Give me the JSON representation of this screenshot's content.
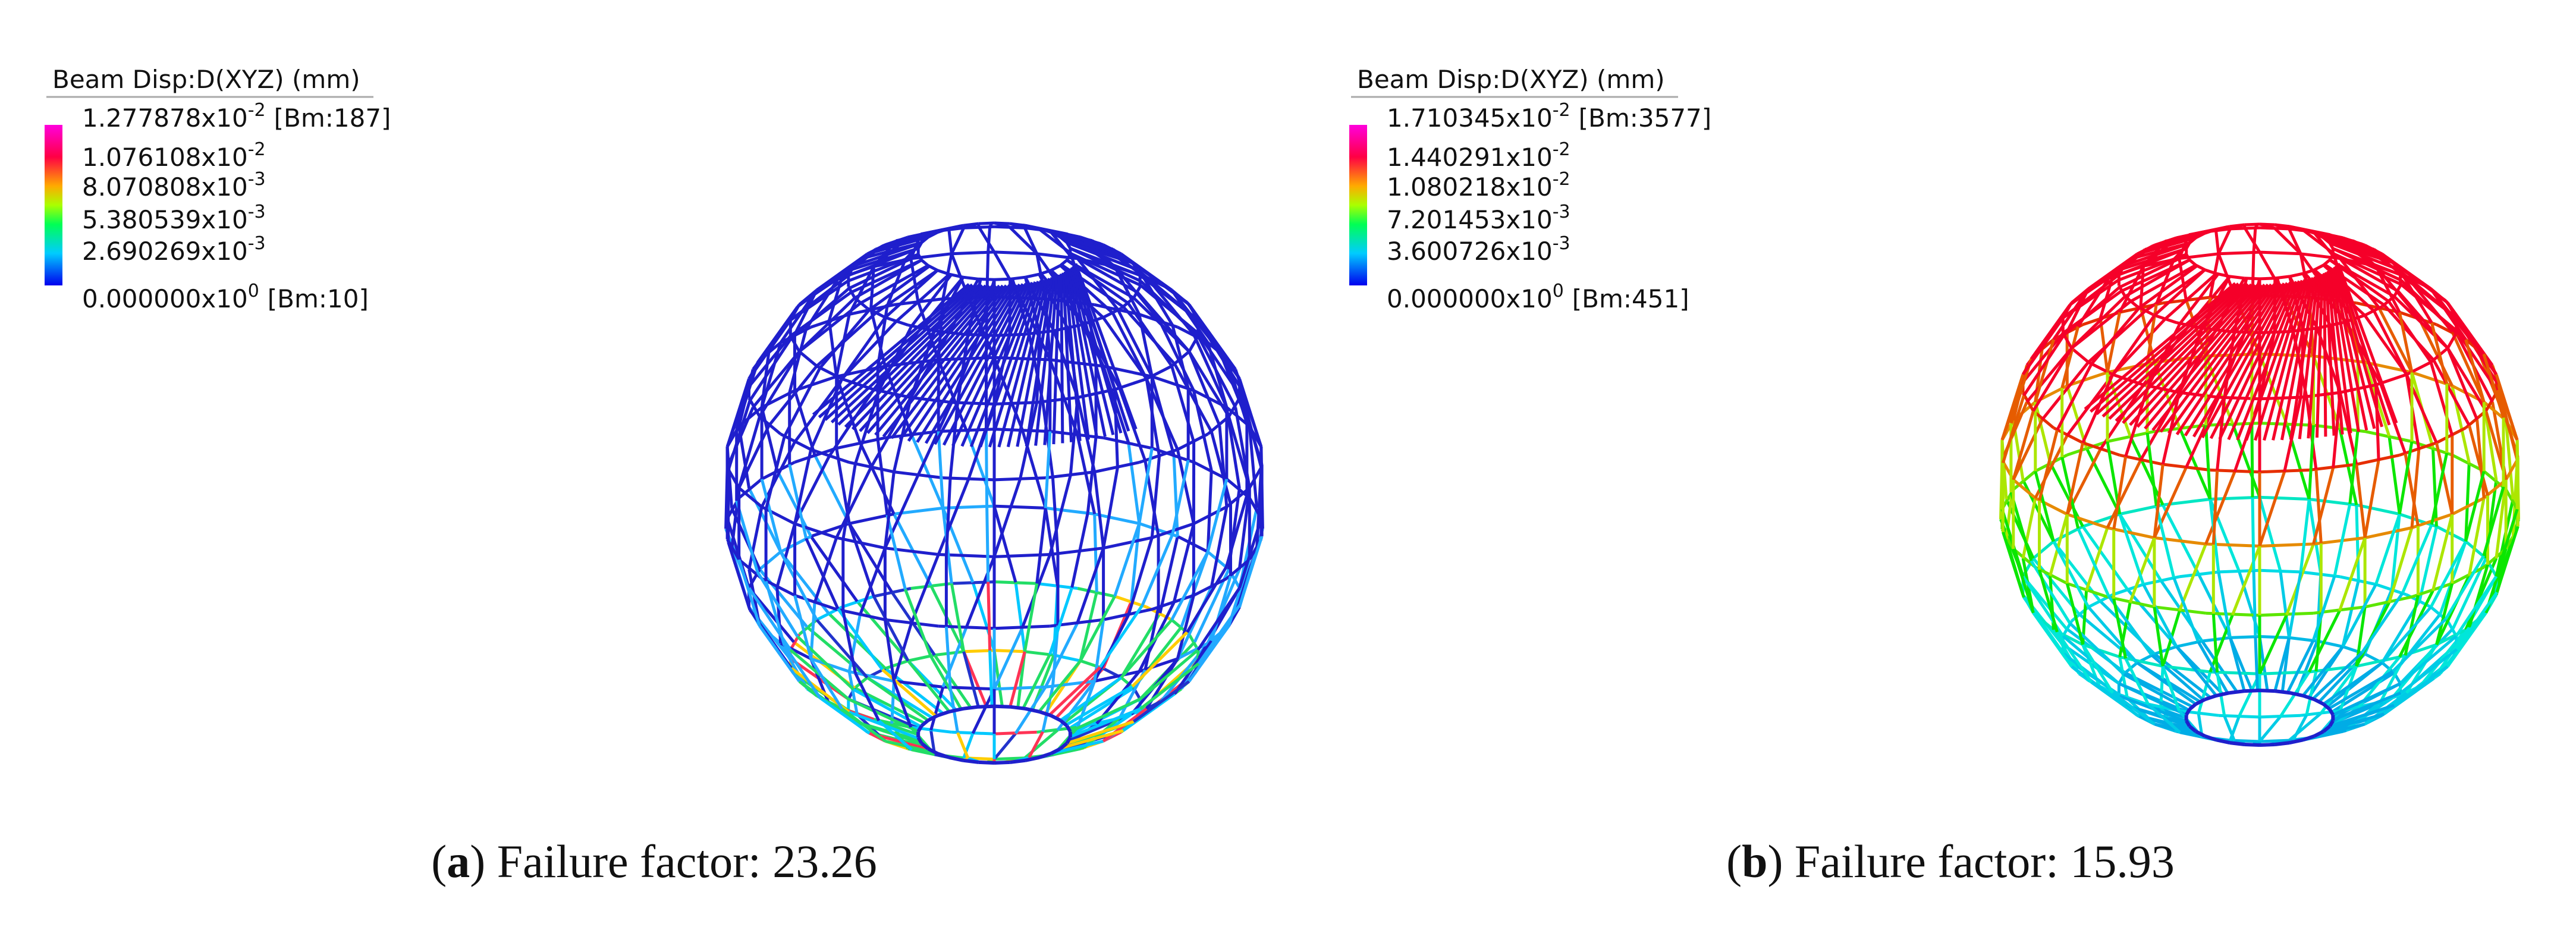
{
  "panels": [
    {
      "legend": {
        "title": "Beam Disp:D(XYZ)  (mm)",
        "entries": [
          {
            "mantissa": "1.277878x10",
            "exponent": "-2",
            "note": "[Bm:187]"
          },
          {
            "mantissa": "1.076108x10",
            "exponent": "-2"
          },
          {
            "mantissa": "8.070808x10",
            "exponent": "-3"
          },
          {
            "mantissa": "5.380539x10",
            "exponent": "-3"
          },
          {
            "mantissa": "2.690269x10",
            "exponent": "-3"
          },
          {
            "mantissa": "0.000000x10",
            "exponent": "0",
            "note": "[Bm:10]"
          }
        ]
      },
      "caption": {
        "open": "(",
        "label": "a",
        "text": ") Failure factor: 23.26"
      }
    },
    {
      "legend": {
        "title": "Beam Disp:D(XYZ)  (mm)",
        "entries": [
          {
            "mantissa": "1.710345x10",
            "exponent": "-2",
            "note": "[Bm:3577]"
          },
          {
            "mantissa": "1.440291x10",
            "exponent": "-2"
          },
          {
            "mantissa": "1.080218x10",
            "exponent": "-2"
          },
          {
            "mantissa": "7.201453x10",
            "exponent": "-3"
          },
          {
            "mantissa": "3.600726x10",
            "exponent": "-3"
          },
          {
            "mantissa": "0.000000x10",
            "exponent": "0",
            "note": "[Bm:451]"
          }
        ]
      },
      "caption": {
        "open": "(",
        "label": "b",
        "text": ") Failure factor: 15.93"
      }
    }
  ]
}
